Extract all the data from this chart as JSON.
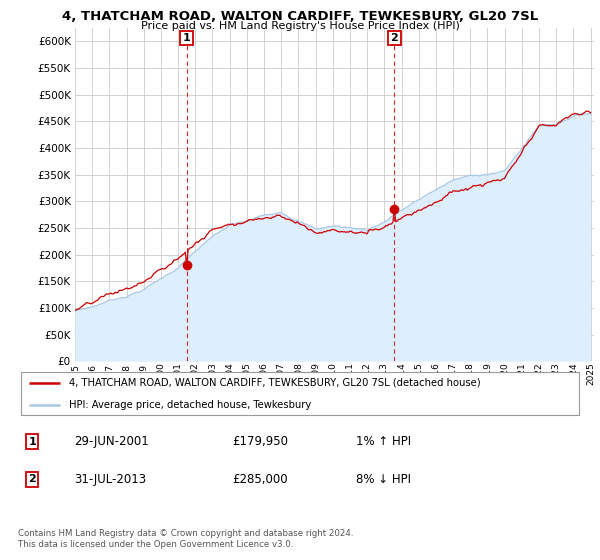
{
  "title": "4, THATCHAM ROAD, WALTON CARDIFF, TEWKESBURY, GL20 7SL",
  "subtitle": "Price paid vs. HM Land Registry's House Price Index (HPI)",
  "legend_line1": "4, THATCHAM ROAD, WALTON CARDIFF, TEWKESBURY, GL20 7SL (detached house)",
  "legend_line2": "HPI: Average price, detached house, Tewkesbury",
  "annotation1_label": "1",
  "annotation1_date": "29-JUN-2001",
  "annotation1_price": "£179,950",
  "annotation1_hpi": "1% ↑ HPI",
  "annotation2_label": "2",
  "annotation2_date": "31-JUL-2013",
  "annotation2_price": "£285,000",
  "annotation2_hpi": "8% ↓ HPI",
  "footer": "Contains HM Land Registry data © Crown copyright and database right 2024.\nThis data is licensed under the Open Government Licence v3.0.",
  "sale1_x": 2001.5,
  "sale1_y": 179950,
  "sale2_x": 2013.58,
  "sale2_y": 285000,
  "hpi_color": "#a8c8e8",
  "hpi_fill_color": "#ddeeff",
  "price_color": "#cc0000",
  "background_color": "#ffffff",
  "grid_color": "#cccccc",
  "ylim": [
    0,
    625000
  ],
  "xlim_start": 1995.0,
  "xlim_end": 2025.2
}
